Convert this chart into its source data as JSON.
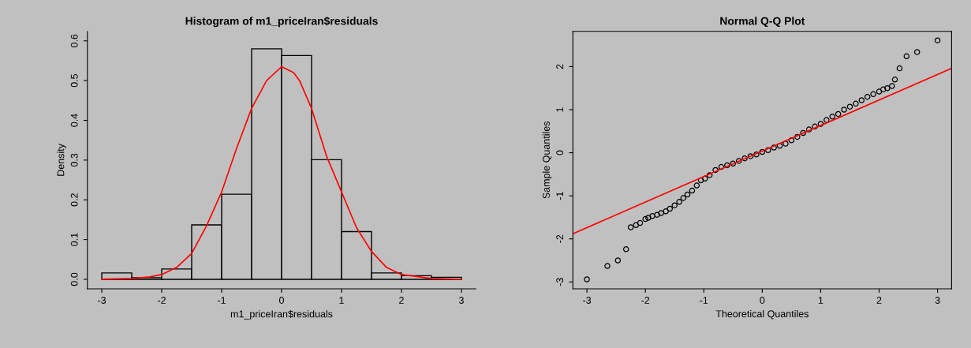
{
  "chart_data": [
    {
      "type": "histogram",
      "title": "Histogram of m1_priceIran$residuals",
      "xlabel": "m1_priceIran$residuals",
      "ylabel": "Density",
      "bins": [
        -3,
        -2.5,
        -2,
        -1.5,
        -1,
        -0.5,
        0,
        0.5,
        1,
        1.5,
        2,
        2.5,
        3
      ],
      "values": [
        0.016,
        0.004,
        0.026,
        0.137,
        0.214,
        0.58,
        0.563,
        0.301,
        0.12,
        0.016,
        0.009,
        0.005
      ],
      "color": "#c0c0c0",
      "series": [
        {
          "type": "line",
          "color": "#ff0000",
          "x": [
            -3,
            -2.5,
            -2.2,
            -2,
            -1.75,
            -1.5,
            -1.25,
            -1,
            -0.75,
            -0.5,
            -0.25,
            0,
            0.2,
            0.3,
            0.5,
            0.75,
            1,
            1.25,
            1.5,
            1.75,
            2,
            2.5,
            3
          ],
          "values": [
            0,
            0.002,
            0.006,
            0.012,
            0.03,
            0.065,
            0.135,
            0.22,
            0.33,
            0.43,
            0.5,
            0.535,
            0.52,
            0.5,
            0.43,
            0.31,
            0.22,
            0.13,
            0.07,
            0.03,
            0.012,
            0.002,
            0
          ]
        }
      ],
      "xlim": [
        -3.24,
        3.24
      ],
      "ylim": [
        -0.024,
        0.624
      ],
      "xticks": [
        -3,
        -2,
        -1,
        0,
        1,
        2,
        3
      ],
      "yticks": [
        {
          "value": 0,
          "label": "0.0"
        },
        {
          "value": 0.1,
          "label": "0.1"
        },
        {
          "value": 0.2,
          "label": "0.2"
        },
        {
          "value": 0.3,
          "label": "0.3"
        },
        {
          "value": 0.4,
          "label": "0.4"
        },
        {
          "value": 0.5,
          "label": "0.5"
        },
        {
          "value": 0.6,
          "label": "0.6"
        }
      ],
      "grid": false
    },
    {
      "type": "scatter",
      "title": "Normal Q-Q Plot",
      "xlabel": "Theoretical Quantiles",
      "ylabel": "Sample Quantiles",
      "series": [
        {
          "type": "scatter",
          "color": "#000000",
          "marker": "circle",
          "x": [
            -3,
            -2.65,
            -2.47,
            -2.33,
            -2.25,
            -2.16,
            -2.09,
            -2.0,
            -1.95,
            -1.88,
            -1.8,
            -1.73,
            -1.65,
            -1.58,
            -1.5,
            -1.42,
            -1.35,
            -1.28,
            -1.2,
            -1.12,
            -1.05,
            -0.98,
            -0.9,
            -0.8,
            -0.7,
            -0.6,
            -0.5,
            -0.4,
            -0.3,
            -0.2,
            -0.1,
            0,
            0.1,
            0.2,
            0.3,
            0.4,
            0.5,
            0.6,
            0.7,
            0.8,
            0.9,
            1.0,
            1.1,
            1.2,
            1.3,
            1.4,
            1.5,
            1.6,
            1.7,
            1.8,
            1.9,
            2.0,
            2.07,
            2.14,
            2.22,
            2.27,
            2.35,
            2.47,
            2.65,
            3.0
          ],
          "values": [
            -2.94,
            -2.63,
            -2.5,
            -2.24,
            -1.73,
            -1.68,
            -1.63,
            -1.54,
            -1.51,
            -1.47,
            -1.44,
            -1.4,
            -1.36,
            -1.3,
            -1.22,
            -1.14,
            -1.05,
            -0.97,
            -0.88,
            -0.76,
            -0.64,
            -0.6,
            -0.52,
            -0.4,
            -0.33,
            -0.29,
            -0.25,
            -0.19,
            -0.13,
            -0.08,
            -0.04,
            0.02,
            0.06,
            0.12,
            0.16,
            0.21,
            0.29,
            0.37,
            0.46,
            0.54,
            0.61,
            0.67,
            0.76,
            0.84,
            0.9,
            1.0,
            1.07,
            1.14,
            1.22,
            1.3,
            1.36,
            1.42,
            1.47,
            1.5,
            1.55,
            1.7,
            1.96,
            2.24,
            2.34,
            2.61
          ]
        },
        {
          "type": "line",
          "color": "#ff0000",
          "x": [
            -3.24,
            3.24
          ],
          "values": [
            -1.88,
            1.96
          ]
        }
      ],
      "xlim": [
        -3.24,
        3.24
      ],
      "ylim": [
        -3.16,
        2.82
      ],
      "xticks": [
        -3,
        -2,
        -1,
        0,
        1,
        2,
        3
      ],
      "yticks": [
        -3,
        -2,
        -1,
        0,
        1,
        2
      ],
      "grid": false
    }
  ]
}
